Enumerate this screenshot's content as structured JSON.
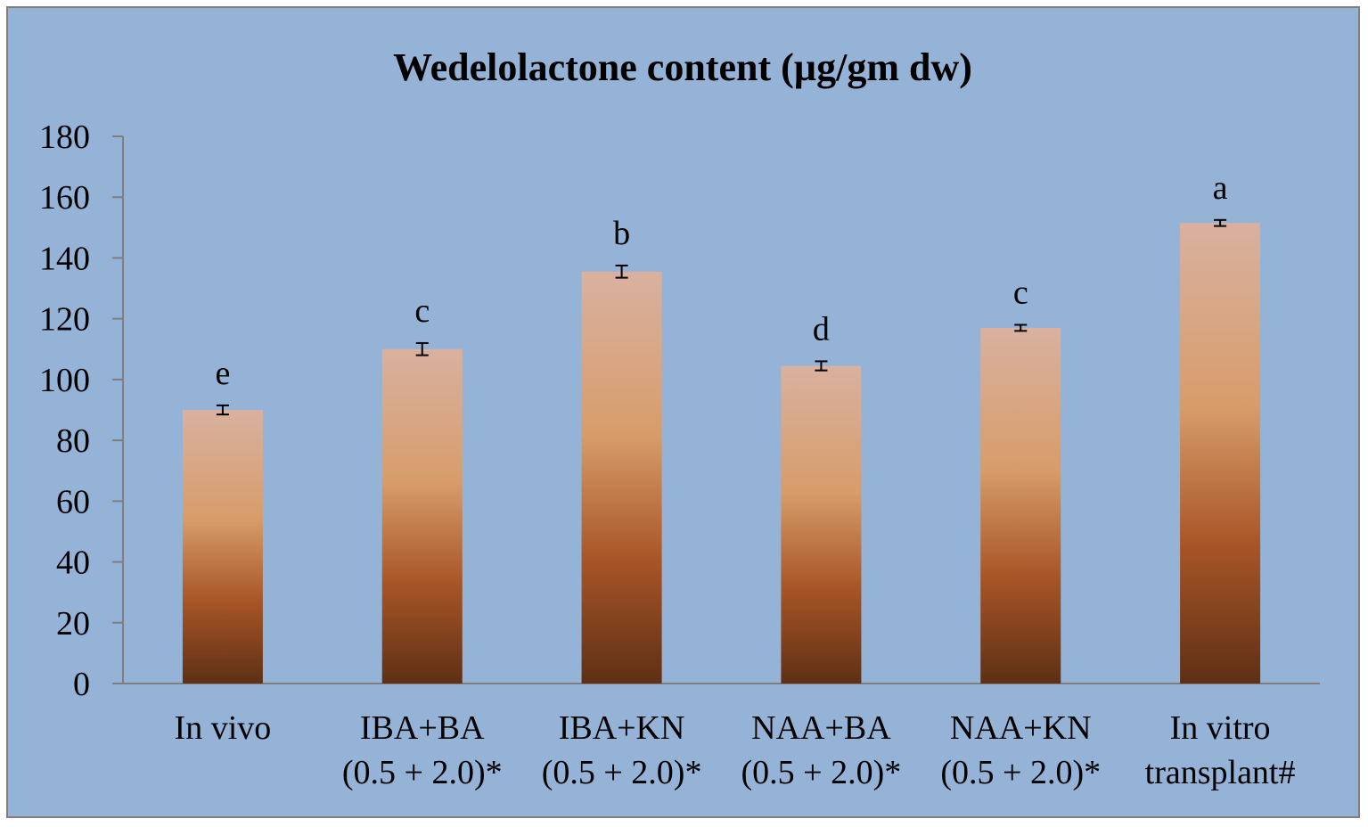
{
  "chart_data": {
    "type": "bar",
    "title": "Wedelolactone content (µg/gm dw)",
    "xlabel": "",
    "ylabel": "",
    "ylim": [
      0,
      180
    ],
    "yticks": [
      0,
      20,
      40,
      60,
      80,
      100,
      120,
      140,
      160,
      180
    ],
    "categories": [
      [
        "In vivo"
      ],
      [
        "IBA+BA",
        "(0.5 + 2.0)*"
      ],
      [
        "IBA+KN",
        "(0.5 + 2.0)*"
      ],
      [
        "NAA+BA",
        "(0.5 + 2.0)*"
      ],
      [
        "NAA+KN",
        "(0.5 + 2.0)*"
      ],
      [
        "In vitro",
        "transplant#"
      ]
    ],
    "values": [
      90,
      110,
      135.5,
      104.5,
      117,
      151.5
    ],
    "errors": [
      1.5,
      2.0,
      2.0,
      1.5,
      1.0,
      1.0
    ],
    "significance": [
      "e",
      "c",
      "b",
      "d",
      "c",
      "a"
    ],
    "grid": false,
    "legend": "none",
    "colors": {
      "background": "#95b3d7",
      "border": "#7f7f7f",
      "bar_top": "#d9b1a0",
      "bar_mid": "#d79c6a",
      "bar_lower": "#a85527",
      "bar_bottom": "#5e3015"
    }
  }
}
